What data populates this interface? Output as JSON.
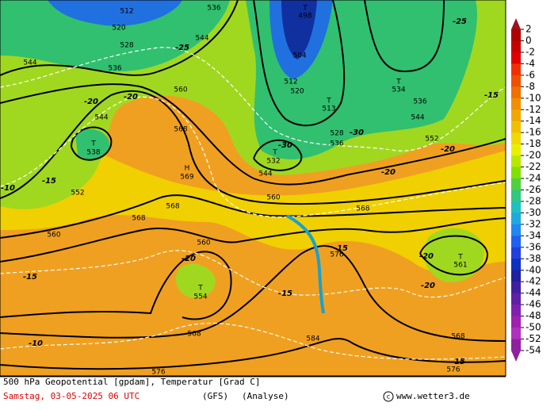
{
  "map": {
    "labels": [
      "512",
      "520",
      "528",
      "536",
      "544",
      "536",
      "544",
      "560",
      "568",
      "H",
      "569",
      "544",
      "T",
      "538",
      "552",
      "568",
      "568",
      "560",
      "560",
      "T",
      "554",
      "568",
      "576",
      "584",
      "576",
      "568",
      "560",
      "544",
      "T",
      "532",
      "T",
      "498",
      "504",
      "512",
      "520",
      "T",
      "513",
      "528",
      "536",
      "T",
      "534",
      "536",
      "544",
      "552",
      "T",
      "561",
      "568",
      "576",
      "-10",
      "-15",
      "-15",
      "-10",
      "-20",
      "-20",
      "-25",
      "-20",
      "-15",
      "-15",
      "-30",
      "-25",
      "-15",
      "-20",
      "-20",
      "-20",
      "-15",
      "-20",
      "-30"
    ]
  },
  "legend": {
    "labels": [
      2,
      0,
      -2,
      -4,
      -6,
      -8,
      -10,
      -12,
      -14,
      -16,
      -18,
      -20,
      -22,
      -24,
      -26,
      -28,
      -30,
      -32,
      -34,
      -36,
      -38,
      -40,
      -42,
      -44,
      -46,
      -48,
      -50,
      -52,
      -54
    ],
    "colors": [
      "#b00000",
      "#c80000",
      "#e00000",
      "#f03000",
      "#f05000",
      "#f07000",
      "#f09000",
      "#f0a800",
      "#f0c000",
      "#f0d800",
      "#e8f000",
      "#b8e800",
      "#80e000",
      "#50d040",
      "#30c880",
      "#20c0c0",
      "#20a8e0",
      "#2088f0",
      "#2060f0",
      "#2040e0",
      "#1030c0",
      "#2020a0",
      "#4020a0",
      "#6020a8",
      "#8020b0",
      "#a020b0",
      "#b030c0",
      "#9020a0"
    ],
    "top_color": "#a01020",
    "bottom_color": "#9020a0"
  },
  "footer": {
    "line1": "500 hPa Geopotential [gpdam], Temperatur [Grad C]",
    "date": "Samstag, 03-05-2025  06 UTC",
    "model": "(GFS)",
    "run": "(Analyse)",
    "site": "www.wetter3.de"
  }
}
